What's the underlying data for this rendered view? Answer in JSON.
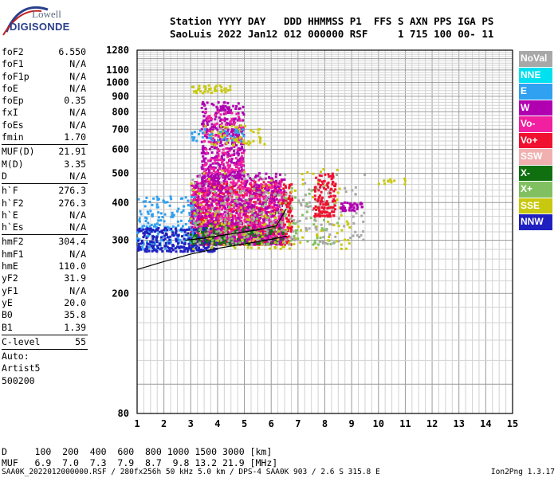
{
  "header": {
    "line1": "Station YYYY DAY   DDD HHMMSS P1  FFS S AXN PPS IGA PS",
    "line2": "SaoLuis 2022 Jan12 012 000000 RSF     1 715 100 00- 11"
  },
  "logo": {
    "line1": "Lowell",
    "line2": "DIGISONDE"
  },
  "params": [
    {
      "k": "foF2",
      "v": "6.550"
    },
    {
      "k": "foF1",
      "v": "N/A"
    },
    {
      "k": "foF1p",
      "v": "N/A"
    },
    {
      "k": "foE",
      "v": "N/A"
    },
    {
      "k": "foEp",
      "v": "0.35"
    },
    {
      "k": "fxI",
      "v": "N/A"
    },
    {
      "k": "foEs",
      "v": "N/A"
    },
    {
      "k": "fmin",
      "v": "1.70"
    },
    {
      "sep": true
    },
    {
      "k": "MUF(D)",
      "v": "21.91"
    },
    {
      "k": "M(D)",
      "v": "3.35"
    },
    {
      "k": "D",
      "v": "N/A"
    },
    {
      "sep": true
    },
    {
      "k": "h`F",
      "v": "276.3"
    },
    {
      "k": "h`F2",
      "v": "276.3"
    },
    {
      "k": "h`E",
      "v": "N/A"
    },
    {
      "k": "h`Es",
      "v": "N/A"
    },
    {
      "sep": true
    },
    {
      "k": "hmF2",
      "v": "304.4"
    },
    {
      "k": "hmF1",
      "v": "N/A"
    },
    {
      "k": "hmE",
      "v": "110.0"
    },
    {
      "k": "yF2",
      "v": "31.9"
    },
    {
      "k": "yF1",
      "v": "N/A"
    },
    {
      "k": "yE",
      "v": "20.0"
    },
    {
      "k": "B0",
      "v": "35.8"
    },
    {
      "k": "B1",
      "v": "1.39"
    },
    {
      "sep": true
    },
    {
      "k": "C-level",
      "v": "55"
    },
    {
      "sep": true
    }
  ],
  "aux": [
    "Auto:",
    "Artist5",
    "500200"
  ],
  "legend": [
    {
      "label": "NoVal",
      "color": "#a8a8a8"
    },
    {
      "label": "NNE",
      "color": "#00e0f0"
    },
    {
      "label": "E",
      "color": "#30a0f0"
    },
    {
      "label": "W",
      "color": "#b000b0"
    },
    {
      "label": "Vo-",
      "color": "#f020a0"
    },
    {
      "label": "Vo+",
      "color": "#f01030"
    },
    {
      "label": "SSW",
      "color": "#f0b0b0"
    },
    {
      "label": "X-",
      "color": "#107010"
    },
    {
      "label": "X+",
      "color": "#80c060"
    },
    {
      "label": "SSE",
      "color": "#c8c810"
    },
    {
      "label": "NNW",
      "color": "#2020c0"
    }
  ],
  "dtable": {
    "line1": "D     100  200  400  600  800 1000 1500 3000 [km]",
    "line2": "MUF   6.9  7.0  7.3  7.9  8.7  9.8 13.2 21.9 [MHz]"
  },
  "footer": {
    "left": "SAA0K_2022012000000.RSF / 280fx256h 50 kHz 5.0 km / DPS-4 SAA0K 903 / 2.6 S 315.8 E",
    "right": "Ion2Png 1.3.17"
  },
  "chart_data": {
    "type": "scatter",
    "title": "",
    "xlabel": "",
    "ylabel": "",
    "xlim": [
      1,
      15
    ],
    "ylim": [
      80,
      1280
    ],
    "xticks": [
      1,
      2,
      3,
      4,
      5,
      6,
      7,
      8,
      9,
      10,
      11,
      12,
      13,
      14,
      15
    ],
    "yticks": [
      80,
      200,
      300,
      400,
      500,
      600,
      700,
      800,
      900,
      1000,
      1100,
      1280
    ],
    "y_scale": "log",
    "grid": true,
    "clusters": [
      {
        "series": "Vo+",
        "fmin": 3.0,
        "fmax": 6.8,
        "hmin": 290,
        "hmax": 470,
        "n": 900
      },
      {
        "series": "Vo-",
        "fmin": 3.0,
        "fmax": 6.5,
        "hmin": 300,
        "hmax": 480,
        "n": 700
      },
      {
        "series": "W",
        "fmin": 3.0,
        "fmax": 6.5,
        "hmin": 290,
        "hmax": 500,
        "n": 600
      },
      {
        "series": "W",
        "fmin": 3.4,
        "fmax": 5.0,
        "hmin": 480,
        "hmax": 860,
        "n": 400
      },
      {
        "series": "Vo-",
        "fmin": 3.5,
        "fmax": 5.0,
        "hmin": 500,
        "hmax": 800,
        "n": 150
      },
      {
        "series": "E",
        "fmin": 1.0,
        "fmax": 3.2,
        "hmin": 280,
        "hmax": 420,
        "n": 200
      },
      {
        "series": "NNW",
        "fmin": 1.0,
        "fmax": 4.0,
        "hmin": 275,
        "hmax": 330,
        "n": 250
      },
      {
        "series": "X-",
        "fmin": 3.0,
        "fmax": 6.5,
        "hmin": 290,
        "hmax": 340,
        "n": 120
      },
      {
        "series": "X+",
        "fmin": 3.0,
        "fmax": 8.5,
        "hmin": 290,
        "hmax": 450,
        "n": 150
      },
      {
        "series": "SSE",
        "fmin": 3.0,
        "fmax": 9.0,
        "hmin": 280,
        "hmax": 520,
        "n": 150
      },
      {
        "series": "NoVal",
        "fmin": 3.0,
        "fmax": 9.5,
        "hmin": 290,
        "hmax": 500,
        "n": 200
      },
      {
        "series": "Vo+",
        "fmin": 7.6,
        "fmax": 8.4,
        "hmin": 360,
        "hmax": 500,
        "n": 120
      },
      {
        "series": "W",
        "fmin": 8.6,
        "fmax": 9.4,
        "hmin": 375,
        "hmax": 400,
        "n": 40
      },
      {
        "series": "SSE",
        "fmin": 3.0,
        "fmax": 4.5,
        "hmin": 920,
        "hmax": 980,
        "n": 40
      },
      {
        "series": "SSE",
        "fmin": 3.5,
        "fmax": 5.8,
        "hmin": 620,
        "hmax": 720,
        "n": 60
      },
      {
        "series": "E",
        "fmin": 3.0,
        "fmax": 5.0,
        "hmin": 640,
        "hmax": 700,
        "n": 40
      },
      {
        "series": "SSE",
        "fmin": 10.0,
        "fmax": 11.0,
        "hmin": 460,
        "hmax": 480,
        "n": 12
      }
    ],
    "trace_lines": [
      {
        "name": "lower",
        "color": "#000000",
        "points": [
          [
            1.0,
            240
          ],
          [
            2.0,
            255
          ],
          [
            3.0,
            270
          ],
          [
            4.0,
            282
          ],
          [
            5.0,
            292
          ],
          [
            6.0,
            302
          ],
          [
            6.6,
            310
          ]
        ]
      },
      {
        "name": "upper",
        "color": "#000000",
        "points": [
          [
            2.8,
            300
          ],
          [
            3.5,
            305
          ],
          [
            4.5,
            315
          ],
          [
            5.5,
            325
          ],
          [
            6.2,
            335
          ],
          [
            6.55,
            380
          ]
        ]
      }
    ]
  }
}
